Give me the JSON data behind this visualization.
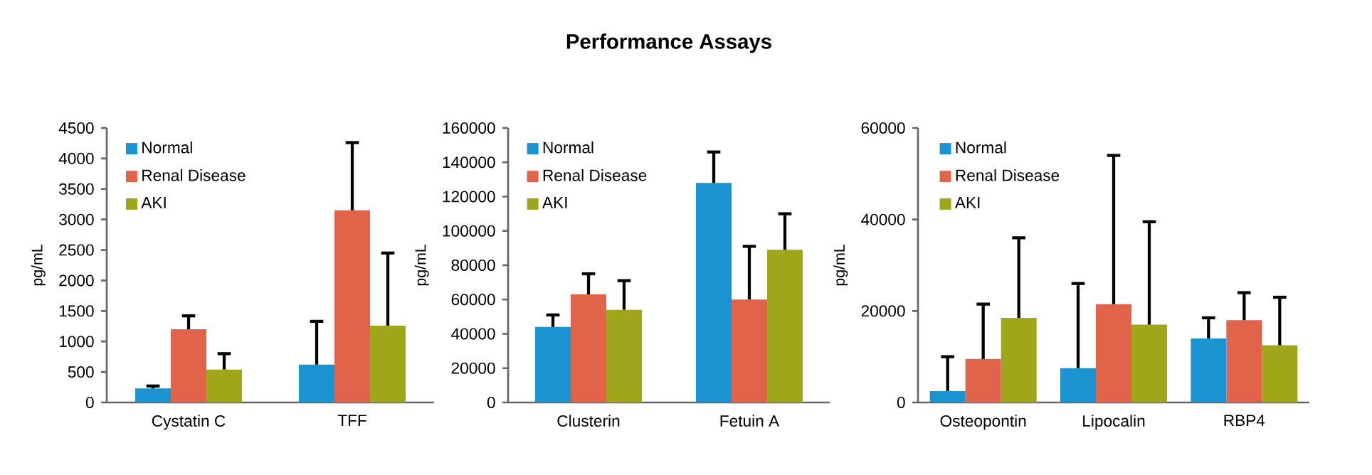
{
  "chart_data": [
    {
      "type": "bar",
      "ylabel": "pg/mL",
      "categories": [
        "Cystatin C",
        "TFF"
      ],
      "ylim": [
        0,
        4500
      ],
      "yticks": [
        0,
        500,
        1000,
        1500,
        2000,
        2500,
        3000,
        3500,
        4000,
        4500
      ],
      "legend": "top left",
      "grid": false,
      "series": [
        {
          "name": "Normal",
          "color": "#1b93d1",
          "values": [
            230,
            620
          ],
          "errors": [
            [
              230,
              270
            ],
            [
              620,
              1330
            ]
          ]
        },
        {
          "name": "Renal Disease",
          "color": "#e0634a",
          "values": [
            1200,
            3150
          ],
          "errors": [
            [
              1200,
              1420
            ],
            [
              3150,
              4260
            ]
          ]
        },
        {
          "name": "AKI",
          "color": "#a0a61a",
          "values": [
            540,
            1260
          ],
          "errors": [
            [
              540,
              800
            ],
            [
              1260,
              2450
            ]
          ]
        }
      ]
    },
    {
      "type": "bar",
      "title": "Performance Assays",
      "ylabel": "pg/mL",
      "categories": [
        "Clusterin",
        "Fetuin A"
      ],
      "ylim": [
        0,
        160000
      ],
      "yticks": [
        0,
        20000,
        40000,
        60000,
        80000,
        100000,
        120000,
        140000,
        160000
      ],
      "legend": "top left",
      "grid": false,
      "series": [
        {
          "name": "Normal",
          "color": "#1b93d1",
          "values": [
            44000,
            128000
          ],
          "errors": [
            [
              44000,
              51000
            ],
            [
              128000,
              146000
            ]
          ]
        },
        {
          "name": "Renal Disease",
          "color": "#e0634a",
          "values": [
            63000,
            60000
          ],
          "errors": [
            [
              63000,
              75000
            ],
            [
              60000,
              91000
            ]
          ]
        },
        {
          "name": "AKI",
          "color": "#a0a61a",
          "values": [
            54000,
            89000
          ],
          "errors": [
            [
              54000,
              71000
            ],
            [
              89000,
              110000
            ]
          ]
        }
      ]
    },
    {
      "type": "bar",
      "ylabel": "pg/mL",
      "categories": [
        "Osteopontin",
        "Lipocalin",
        "RBP4"
      ],
      "ylim": [
        0,
        60000
      ],
      "yticks": [
        0,
        20000,
        40000,
        60000
      ],
      "legend": "top left",
      "grid": false,
      "series": [
        {
          "name": "Normal",
          "color": "#1b93d1",
          "values": [
            2500,
            7500,
            14000
          ],
          "errors": [
            [
              2500,
              10000
            ],
            [
              7500,
              26000
            ],
            [
              14000,
              18500
            ]
          ]
        },
        {
          "name": "Renal Disease",
          "color": "#e0634a",
          "values": [
            9500,
            21500,
            18000
          ],
          "errors": [
            [
              9500,
              21500
            ],
            [
              21500,
              54000
            ],
            [
              18000,
              24000
            ]
          ]
        },
        {
          "name": "AKI",
          "color": "#a0a61a",
          "values": [
            18500,
            17000,
            12500
          ],
          "errors": [
            [
              18500,
              36000
            ],
            [
              17000,
              39500
            ],
            [
              12500,
              23000
            ]
          ]
        }
      ]
    }
  ]
}
